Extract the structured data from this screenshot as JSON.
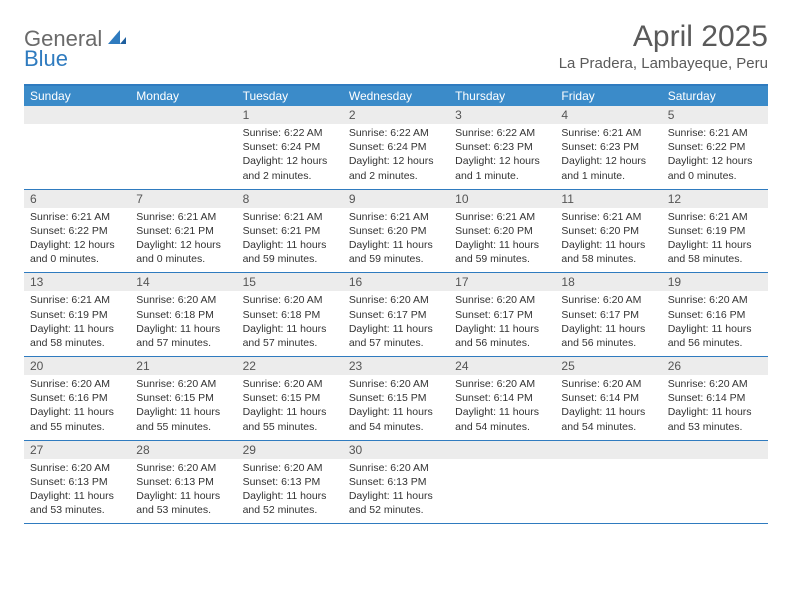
{
  "logo": {
    "text1": "General",
    "text2": "Blue"
  },
  "title": "April 2025",
  "location": "La Pradera, Lambayeque, Peru",
  "colors": {
    "header_bar": "#3b8bc9",
    "border": "#2f7bbf",
    "daynum_bg": "#ececec",
    "text": "#333333",
    "muted": "#5a5a5a"
  },
  "weekdays": [
    "Sunday",
    "Monday",
    "Tuesday",
    "Wednesday",
    "Thursday",
    "Friday",
    "Saturday"
  ],
  "weeks": [
    [
      null,
      null,
      {
        "n": "1",
        "sr": "Sunrise: 6:22 AM",
        "ss": "Sunset: 6:24 PM",
        "dl": "Daylight: 12 hours and 2 minutes."
      },
      {
        "n": "2",
        "sr": "Sunrise: 6:22 AM",
        "ss": "Sunset: 6:24 PM",
        "dl": "Daylight: 12 hours and 2 minutes."
      },
      {
        "n": "3",
        "sr": "Sunrise: 6:22 AM",
        "ss": "Sunset: 6:23 PM",
        "dl": "Daylight: 12 hours and 1 minute."
      },
      {
        "n": "4",
        "sr": "Sunrise: 6:21 AM",
        "ss": "Sunset: 6:23 PM",
        "dl": "Daylight: 12 hours and 1 minute."
      },
      {
        "n": "5",
        "sr": "Sunrise: 6:21 AM",
        "ss": "Sunset: 6:22 PM",
        "dl": "Daylight: 12 hours and 0 minutes."
      }
    ],
    [
      {
        "n": "6",
        "sr": "Sunrise: 6:21 AM",
        "ss": "Sunset: 6:22 PM",
        "dl": "Daylight: 12 hours and 0 minutes."
      },
      {
        "n": "7",
        "sr": "Sunrise: 6:21 AM",
        "ss": "Sunset: 6:21 PM",
        "dl": "Daylight: 12 hours and 0 minutes."
      },
      {
        "n": "8",
        "sr": "Sunrise: 6:21 AM",
        "ss": "Sunset: 6:21 PM",
        "dl": "Daylight: 11 hours and 59 minutes."
      },
      {
        "n": "9",
        "sr": "Sunrise: 6:21 AM",
        "ss": "Sunset: 6:20 PM",
        "dl": "Daylight: 11 hours and 59 minutes."
      },
      {
        "n": "10",
        "sr": "Sunrise: 6:21 AM",
        "ss": "Sunset: 6:20 PM",
        "dl": "Daylight: 11 hours and 59 minutes."
      },
      {
        "n": "11",
        "sr": "Sunrise: 6:21 AM",
        "ss": "Sunset: 6:20 PM",
        "dl": "Daylight: 11 hours and 58 minutes."
      },
      {
        "n": "12",
        "sr": "Sunrise: 6:21 AM",
        "ss": "Sunset: 6:19 PM",
        "dl": "Daylight: 11 hours and 58 minutes."
      }
    ],
    [
      {
        "n": "13",
        "sr": "Sunrise: 6:21 AM",
        "ss": "Sunset: 6:19 PM",
        "dl": "Daylight: 11 hours and 58 minutes."
      },
      {
        "n": "14",
        "sr": "Sunrise: 6:20 AM",
        "ss": "Sunset: 6:18 PM",
        "dl": "Daylight: 11 hours and 57 minutes."
      },
      {
        "n": "15",
        "sr": "Sunrise: 6:20 AM",
        "ss": "Sunset: 6:18 PM",
        "dl": "Daylight: 11 hours and 57 minutes."
      },
      {
        "n": "16",
        "sr": "Sunrise: 6:20 AM",
        "ss": "Sunset: 6:17 PM",
        "dl": "Daylight: 11 hours and 57 minutes."
      },
      {
        "n": "17",
        "sr": "Sunrise: 6:20 AM",
        "ss": "Sunset: 6:17 PM",
        "dl": "Daylight: 11 hours and 56 minutes."
      },
      {
        "n": "18",
        "sr": "Sunrise: 6:20 AM",
        "ss": "Sunset: 6:17 PM",
        "dl": "Daylight: 11 hours and 56 minutes."
      },
      {
        "n": "19",
        "sr": "Sunrise: 6:20 AM",
        "ss": "Sunset: 6:16 PM",
        "dl": "Daylight: 11 hours and 56 minutes."
      }
    ],
    [
      {
        "n": "20",
        "sr": "Sunrise: 6:20 AM",
        "ss": "Sunset: 6:16 PM",
        "dl": "Daylight: 11 hours and 55 minutes."
      },
      {
        "n": "21",
        "sr": "Sunrise: 6:20 AM",
        "ss": "Sunset: 6:15 PM",
        "dl": "Daylight: 11 hours and 55 minutes."
      },
      {
        "n": "22",
        "sr": "Sunrise: 6:20 AM",
        "ss": "Sunset: 6:15 PM",
        "dl": "Daylight: 11 hours and 55 minutes."
      },
      {
        "n": "23",
        "sr": "Sunrise: 6:20 AM",
        "ss": "Sunset: 6:15 PM",
        "dl": "Daylight: 11 hours and 54 minutes."
      },
      {
        "n": "24",
        "sr": "Sunrise: 6:20 AM",
        "ss": "Sunset: 6:14 PM",
        "dl": "Daylight: 11 hours and 54 minutes."
      },
      {
        "n": "25",
        "sr": "Sunrise: 6:20 AM",
        "ss": "Sunset: 6:14 PM",
        "dl": "Daylight: 11 hours and 54 minutes."
      },
      {
        "n": "26",
        "sr": "Sunrise: 6:20 AM",
        "ss": "Sunset: 6:14 PM",
        "dl": "Daylight: 11 hours and 53 minutes."
      }
    ],
    [
      {
        "n": "27",
        "sr": "Sunrise: 6:20 AM",
        "ss": "Sunset: 6:13 PM",
        "dl": "Daylight: 11 hours and 53 minutes."
      },
      {
        "n": "28",
        "sr": "Sunrise: 6:20 AM",
        "ss": "Sunset: 6:13 PM",
        "dl": "Daylight: 11 hours and 53 minutes."
      },
      {
        "n": "29",
        "sr": "Sunrise: 6:20 AM",
        "ss": "Sunset: 6:13 PM",
        "dl": "Daylight: 11 hours and 52 minutes."
      },
      {
        "n": "30",
        "sr": "Sunrise: 6:20 AM",
        "ss": "Sunset: 6:13 PM",
        "dl": "Daylight: 11 hours and 52 minutes."
      },
      null,
      null,
      null
    ]
  ]
}
